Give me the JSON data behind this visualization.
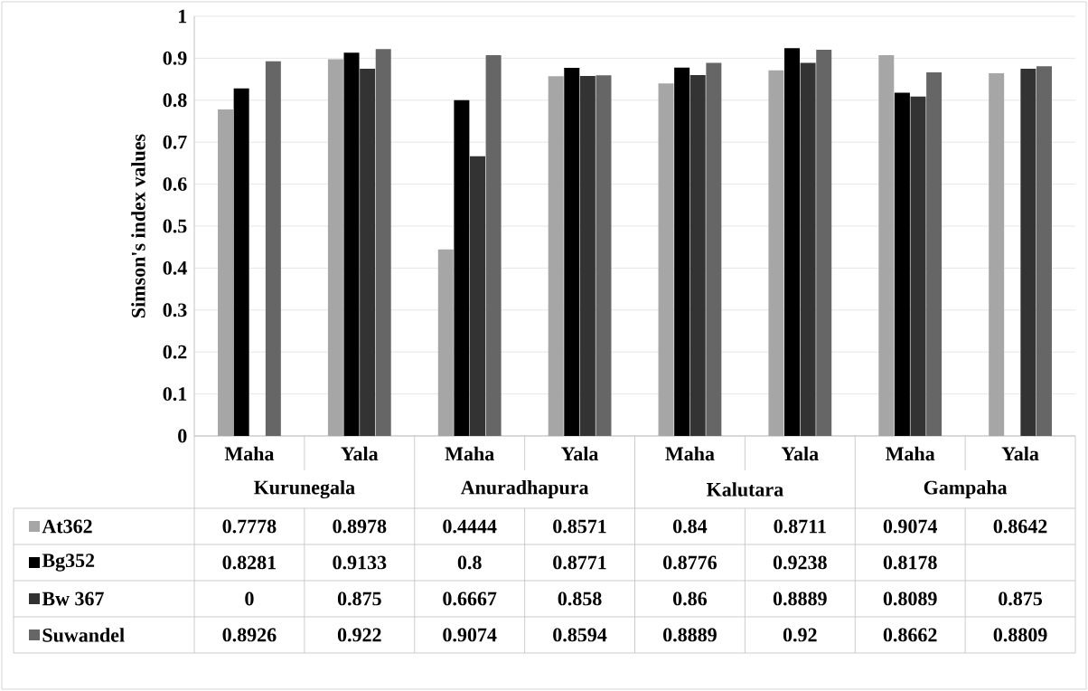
{
  "chart_data": {
    "type": "bar",
    "ylabel": "Simson's index values",
    "categories": [
      "Maha",
      "Yala",
      "Maha",
      "Yala",
      "Maha",
      "Yala",
      "Maha",
      "Yala"
    ],
    "annotations": [
      "Kurunegala",
      "Anuradhapura",
      "Kalutara",
      "Gampaha"
    ],
    "series": [
      {
        "name": "At362",
        "color": "#a6a6a6",
        "values": [
          0.7778,
          0.8978,
          0.4444,
          0.8571,
          0.84,
          0.8711,
          0.9074,
          0.8642
        ]
      },
      {
        "name": "Bg352",
        "color": "#000000",
        "values": [
          0.8281,
          0.9133,
          0.8,
          0.8771,
          0.8776,
          0.9238,
          0.8178,
          null
        ]
      },
      {
        "name": "Bw 367",
        "color": "#333333",
        "values": [
          0,
          0.875,
          0.6667,
          0.858,
          0.86,
          0.8889,
          0.8089,
          0.875
        ]
      },
      {
        "name": "Suwandel",
        "color": "#666666",
        "values": [
          0.8926,
          0.922,
          0.9074,
          0.8594,
          0.8889,
          0.92,
          0.8662,
          0.8809
        ]
      }
    ],
    "ylim": [
      0,
      1
    ],
    "yticks": [
      0,
      0.1,
      0.2,
      0.3,
      0.4,
      0.5,
      0.6,
      0.7,
      0.8,
      0.9,
      1
    ],
    "grid": "y",
    "data_labels": true,
    "legend": "bottom"
  }
}
